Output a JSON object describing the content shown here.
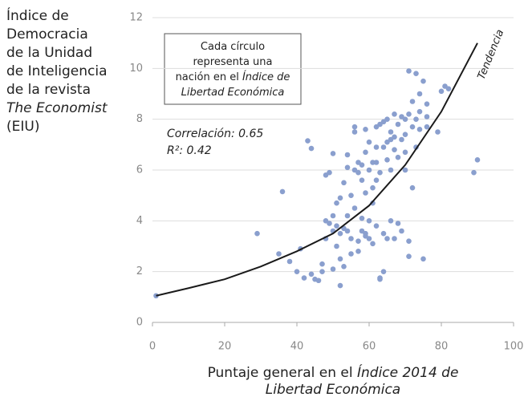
{
  "chart_data": {
    "type": "scatter",
    "y_label_lines": [
      {
        "text": "Índice de",
        "italic": false
      },
      {
        "text": "Democracia",
        "italic": false
      },
      {
        "text": "de la Unidad",
        "italic": false
      },
      {
        "text": "de Inteligencia",
        "italic": false
      },
      {
        "text": "de la revista",
        "italic": false
      },
      {
        "text": "The Economist",
        "italic": true
      },
      {
        "text": "(EIU)",
        "italic": false
      }
    ],
    "x_label_lines": [
      [
        {
          "text": "Puntaje general en el ",
          "italic": false
        },
        {
          "text": "Índice 2014 de",
          "italic": true
        }
      ],
      [
        {
          "text": "Libertad Económica",
          "italic": true
        }
      ]
    ],
    "note_lines": [
      [
        {
          "text": "Cada círculo",
          "italic": false
        }
      ],
      [
        {
          "text": "representa una",
          "italic": false
        }
      ],
      [
        {
          "text": "nación en el ",
          "italic": false
        },
        {
          "text": "Índice de",
          "italic": true
        }
      ],
      [
        {
          "text": "Libertad Económica",
          "italic": true
        }
      ]
    ],
    "stats": [
      "Correlación: 0.65",
      "R²: 0.42"
    ],
    "trend": {
      "name": "Tendencia",
      "color": "#1a1a1a",
      "x": [
        1,
        10,
        20,
        30,
        40,
        50,
        60,
        70,
        80,
        90
      ],
      "values": [
        1.05,
        1.35,
        1.7,
        2.2,
        2.8,
        3.5,
        4.6,
        6.2,
        8.3,
        11
      ]
    },
    "series": [
      {
        "color": "#8a9fce",
        "x": [
          1,
          29,
          35,
          36,
          38,
          40,
          41,
          42,
          43,
          44,
          44,
          45,
          46,
          47,
          47,
          48,
          48,
          49,
          49,
          50,
          50,
          50,
          51,
          51,
          51,
          52,
          52,
          52,
          52,
          53,
          53,
          53,
          54,
          54,
          54,
          55,
          55,
          55,
          56,
          56,
          56,
          56,
          57,
          57,
          57,
          57,
          58,
          58,
          58,
          58,
          59,
          59,
          59,
          59,
          60,
          60,
          60,
          60,
          61,
          61,
          61,
          61,
          62,
          62,
          62,
          62,
          63,
          63,
          63,
          63,
          64,
          64,
          64,
          64,
          65,
          65,
          65,
          66,
          66,
          66,
          67,
          67,
          67,
          67,
          68,
          68,
          68,
          69,
          69,
          69,
          70,
          70,
          70,
          71,
          71,
          71,
          71,
          72,
          72,
          72,
          73,
          73,
          73,
          74,
          74,
          74,
          75,
          75,
          76,
          76,
          76,
          79,
          80,
          81,
          82,
          89,
          90,
          48,
          65,
          66,
          62,
          59,
          54,
          50,
          70
        ],
        "values": [
          1.05,
          3.5,
          2.7,
          5.15,
          2.4,
          2.0,
          2.9,
          1.75,
          7.15,
          6.85,
          1.9,
          1.7,
          1.65,
          2.0,
          2.3,
          3.3,
          5.8,
          5.9,
          3.9,
          6.65,
          3.6,
          4.2,
          3.0,
          3.8,
          4.7,
          1.45,
          2.5,
          3.5,
          4.9,
          5.5,
          3.7,
          2.2,
          6.6,
          6.1,
          4.2,
          3.3,
          5.0,
          2.7,
          7.5,
          7.7,
          6.0,
          4.5,
          5.9,
          6.3,
          3.2,
          2.8,
          6.2,
          5.6,
          3.6,
          4.1,
          6.7,
          5.1,
          3.5,
          3.4,
          7.1,
          6.0,
          4.0,
          3.3,
          6.3,
          5.3,
          4.7,
          3.1,
          7.7,
          6.9,
          6.3,
          3.8,
          7.8,
          5.9,
          1.7,
          1.75,
          7.9,
          6.9,
          3.5,
          2.0,
          7.1,
          6.4,
          3.3,
          7.5,
          6.0,
          4.0,
          8.2,
          7.3,
          6.8,
          3.3,
          7.8,
          6.5,
          3.9,
          8.1,
          7.2,
          3.6,
          8.0,
          6.7,
          6.0,
          9.9,
          8.2,
          3.2,
          2.6,
          8.7,
          7.7,
          5.3,
          9.8,
          8.0,
          6.9,
          9.0,
          7.6,
          8.3,
          9.5,
          2.5,
          8.6,
          8.1,
          7.7,
          7.5,
          9.1,
          9.3,
          9.2,
          5.9,
          6.4,
          4.0,
          8.0,
          7.2,
          5.6,
          7.6,
          3.6,
          2.1,
          7.4
        ]
      }
    ],
    "xlim": [
      0,
      100
    ],
    "xticks": [
      0,
      20,
      40,
      60,
      80,
      100
    ],
    "ylim": [
      0,
      12
    ],
    "yticks": [
      0,
      2,
      4,
      6,
      8,
      10,
      12
    ],
    "grid": true
  }
}
